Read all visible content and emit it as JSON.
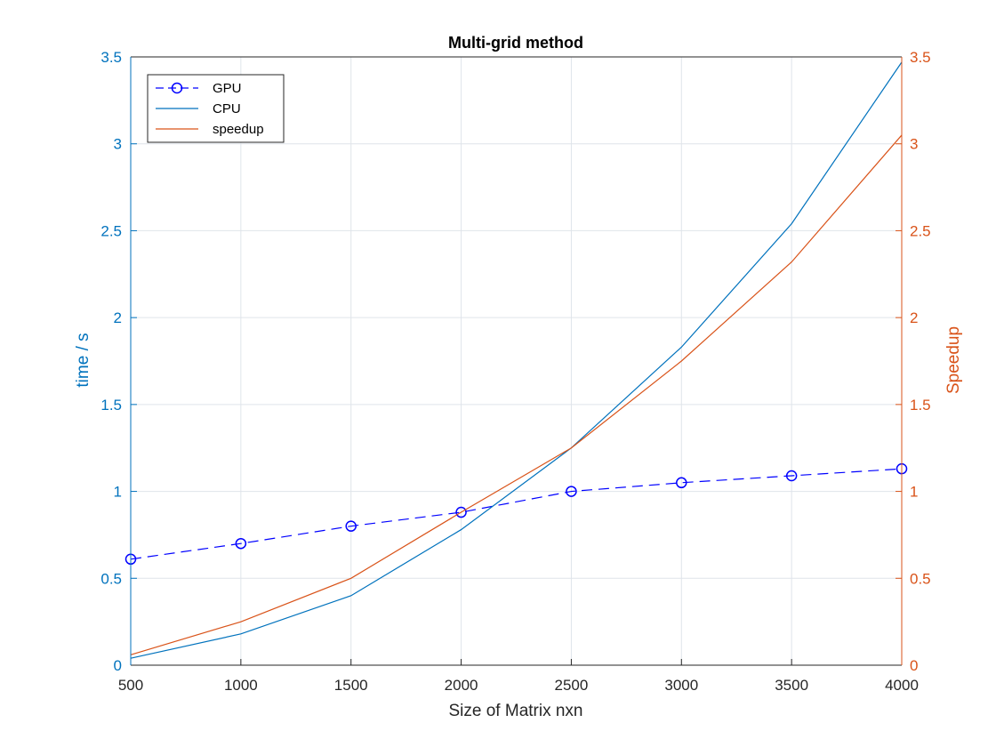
{
  "chart_data": {
    "type": "line",
    "title": "Multi-grid method",
    "xlabel": "Size of Matrix nxn",
    "ylabel_left": "time / s",
    "ylabel_right": "Speedup",
    "x": [
      500,
      1000,
      1500,
      2000,
      2500,
      3000,
      3500,
      4000
    ],
    "xlim": [
      500,
      4000
    ],
    "xticks": [
      "500",
      "1000",
      "1500",
      "2000",
      "2500",
      "3000",
      "3500",
      "4000"
    ],
    "ylim_left": [
      0,
      3.5
    ],
    "ylim_right": [
      0,
      3.5
    ],
    "yticks_left": [
      "0",
      "0.5",
      "1",
      "1.5",
      "2",
      "2.5",
      "3",
      "3.5"
    ],
    "yticks_right": [
      "0",
      "0.5",
      "1",
      "1.5",
      "2",
      "2.5",
      "3",
      "3.5"
    ],
    "grid": true,
    "legend_position": "top-left",
    "series": [
      {
        "name": "GPU",
        "axis": "left",
        "color": "#0000ff",
        "style": "dashed-circle",
        "values": [
          0.61,
          0.7,
          0.8,
          0.88,
          1.0,
          1.05,
          1.09,
          1.13
        ]
      },
      {
        "name": "CPU",
        "axis": "left",
        "color": "#0072BD",
        "style": "solid",
        "values": [
          0.04,
          0.18,
          0.4,
          0.78,
          1.25,
          1.83,
          2.54,
          3.47
        ]
      },
      {
        "name": "speedup",
        "axis": "right",
        "color": "#D95319",
        "style": "solid",
        "values": [
          0.06,
          0.25,
          0.5,
          0.88,
          1.25,
          1.75,
          2.32,
          3.05
        ]
      }
    ],
    "colors": {
      "left_axis": "#0072BD",
      "right_axis": "#D95319",
      "grid": "#dfe4ea"
    }
  }
}
